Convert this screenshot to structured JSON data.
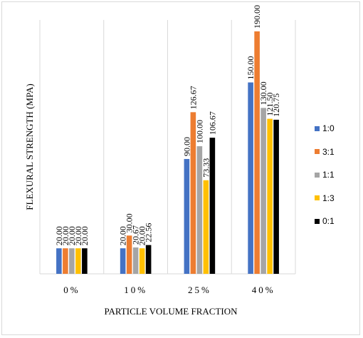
{
  "chart_data": {
    "type": "bar",
    "title": "",
    "xlabel": "PARTICLE VOLUME FRACTION",
    "ylabel": "FLEXURAL STRENGTH (MPA)",
    "categories": [
      "0%",
      "10%",
      "25%",
      "40%"
    ],
    "ylim": [
      0,
      200
    ],
    "grid": "vertical lines between categories",
    "legend_position": "right",
    "series": [
      {
        "name": "1:0",
        "color": "#4472c4",
        "values": [
          20.0,
          20.0,
          90.0,
          150.0
        ],
        "labels": [
          "20.00",
          "20.00",
          "90.00",
          "150.00"
        ]
      },
      {
        "name": "3:1",
        "color": "#ed7d31",
        "values": [
          20.0,
          30.0,
          126.67,
          190.0
        ],
        "labels": [
          "20.00",
          "30.00",
          "126.67",
          "190.00"
        ]
      },
      {
        "name": "1:1",
        "color": "#a5a5a5",
        "values": [
          20.0,
          20.67,
          100.0,
          130.0
        ],
        "labels": [
          "20.00",
          "20.67",
          "100.00",
          "130.00"
        ]
      },
      {
        "name": "1:3",
        "color": "#ffc000",
        "values": [
          20.0,
          20.0,
          73.33,
          121.5
        ],
        "labels": [
          "20.00",
          "20.00",
          "73.33",
          "121.50"
        ]
      },
      {
        "name": "0:1",
        "color": "#000000",
        "values": [
          20.0,
          22.56,
          106.67,
          120.75
        ],
        "labels": [
          "20.00",
          "22.56",
          "106.67",
          "120.75"
        ]
      }
    ]
  }
}
